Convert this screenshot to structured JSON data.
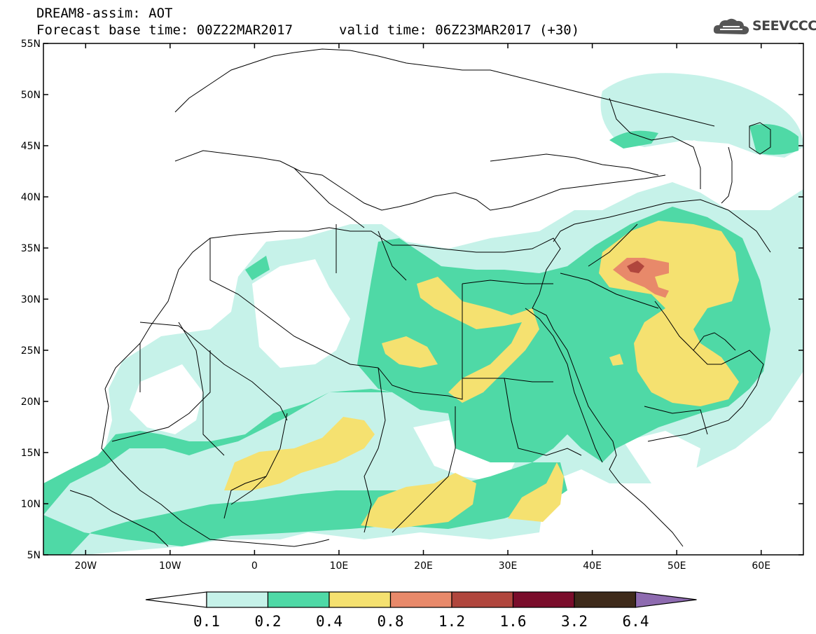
{
  "header": {
    "line1": "DREAM8-assim: AOT",
    "line2": "Forecast base time: 00Z22MAR2017",
    "line3": "valid time: 06Z23MAR2017 (+30)"
  },
  "logo": {
    "text": "SEEVCCC",
    "icon": "cloud-icon"
  },
  "map": {
    "lon_range": [
      -25,
      65
    ],
    "lat_range": [
      5,
      55
    ],
    "lat_ticks": [
      "5N",
      "10N",
      "15N",
      "20N",
      "25N",
      "30N",
      "35N",
      "40N",
      "45N",
      "50N",
      "55N"
    ],
    "lon_ticks": [
      "20W",
      "10W",
      "0",
      "10E",
      "20E",
      "30E",
      "40E",
      "50E",
      "60E"
    ]
  },
  "colorbar": {
    "labels": [
      "0.1",
      "0.2",
      "0.4",
      "0.8",
      "1.2",
      "1.6",
      "3.2",
      "6.4"
    ],
    "colors": [
      "#ffffff",
      "#c6f2e9",
      "#4fd9a6",
      "#f5e170",
      "#e8896a",
      "#b0463d",
      "#7a0d2b",
      "#3e2a1a",
      "#8e6bb0"
    ]
  }
}
